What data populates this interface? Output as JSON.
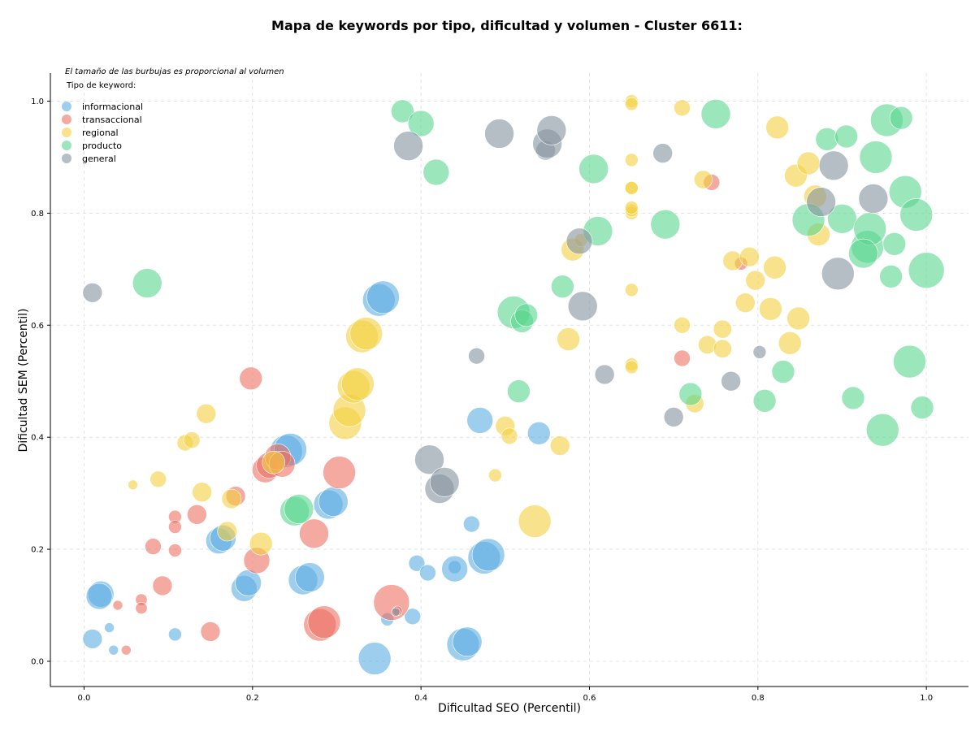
{
  "title": "Mapa de keywords por tipo, dificultad y volumen - Cluster 6611:",
  "note": "El tamaño de las burbujas es proporcional al volumen",
  "legend_title": "Tipo de keyword:",
  "chart_data": {
    "type": "scatter",
    "title": "Mapa de keywords por tipo, dificultad y volumen - Cluster 6611:",
    "xlabel": "Dificultad SEO (Percentil)",
    "ylabel": "Dificultad SEM (Percentil)",
    "xlim": [
      -0.04,
      1.05
    ],
    "ylim": [
      -0.045,
      1.05
    ],
    "xticks": [
      "0.0",
      "0.2",
      "0.4",
      "0.6",
      "0.8",
      "1.0"
    ],
    "yticks": [
      "0.0",
      "0.2",
      "0.4",
      "0.6",
      "0.8",
      "1.0"
    ],
    "grid": true,
    "legend_placement": "top-left",
    "size_encodes": "volume",
    "series": [
      {
        "name": "informacional",
        "color": "#5DADE2",
        "points": [
          [
            0.01,
            0.04,
            3
          ],
          [
            0.03,
            0.06,
            1.5
          ],
          [
            0.035,
            0.02,
            1.5
          ],
          [
            0.02,
            0.12,
            4
          ],
          [
            0.018,
            0.116,
            4
          ],
          [
            0.108,
            0.048,
            2
          ],
          [
            0.16,
            0.215,
            4
          ],
          [
            0.165,
            0.22,
            4
          ],
          [
            0.19,
            0.13,
            4
          ],
          [
            0.195,
            0.14,
            4
          ],
          [
            0.26,
            0.145,
            4.5
          ],
          [
            0.268,
            0.15,
            4.5
          ],
          [
            0.29,
            0.28,
            4.5
          ],
          [
            0.296,
            0.285,
            4.5
          ],
          [
            0.24,
            0.375,
            5
          ],
          [
            0.245,
            0.378,
            5
          ],
          [
            0.345,
            0.005,
            5
          ],
          [
            0.36,
            0.075,
            2
          ],
          [
            0.39,
            0.08,
            2.5
          ],
          [
            0.395,
            0.175,
            2.5
          ],
          [
            0.408,
            0.158,
            2.5
          ],
          [
            0.44,
            0.168,
            2
          ],
          [
            0.44,
            0.165,
            4
          ],
          [
            0.45,
            0.03,
            5
          ],
          [
            0.455,
            0.035,
            4.5
          ],
          [
            0.46,
            0.245,
            2.5
          ],
          [
            0.47,
            0.43,
            4
          ],
          [
            0.475,
            0.185,
            5
          ],
          [
            0.48,
            0.19,
            5
          ],
          [
            0.54,
            0.407,
            3.5
          ],
          [
            0.35,
            0.645,
            5
          ],
          [
            0.355,
            0.65,
            5
          ]
        ]
      },
      {
        "name": "transaccional",
        "color": "#EC7063",
        "points": [
          [
            0.04,
            0.1,
            1.5
          ],
          [
            0.05,
            0.02,
            1.5
          ],
          [
            0.068,
            0.11,
            1.8
          ],
          [
            0.068,
            0.095,
            1.8
          ],
          [
            0.082,
            0.205,
            2.5
          ],
          [
            0.093,
            0.135,
            3
          ],
          [
            0.108,
            0.258,
            2
          ],
          [
            0.108,
            0.24,
            2
          ],
          [
            0.108,
            0.198,
            2
          ],
          [
            0.134,
            0.262,
            3
          ],
          [
            0.15,
            0.053,
            3
          ],
          [
            0.18,
            0.295,
            3
          ],
          [
            0.198,
            0.505,
            3.5
          ],
          [
            0.205,
            0.18,
            4
          ],
          [
            0.215,
            0.342,
            4
          ],
          [
            0.22,
            0.35,
            4
          ],
          [
            0.23,
            0.365,
            4
          ],
          [
            0.235,
            0.352,
            4
          ],
          [
            0.273,
            0.228,
            4.5
          ],
          [
            0.28,
            0.065,
            5
          ],
          [
            0.285,
            0.07,
            5
          ],
          [
            0.303,
            0.337,
            5
          ],
          [
            0.365,
            0.105,
            5.5
          ],
          [
            0.372,
            0.09,
            1.5
          ],
          [
            0.71,
            0.541,
            2.5
          ],
          [
            0.745,
            0.855,
            2.5
          ],
          [
            0.78,
            0.71,
            2
          ]
        ]
      },
      {
        "name": "regional",
        "color": "#F4D03F",
        "points": [
          [
            0.058,
            0.315,
            1.5
          ],
          [
            0.088,
            0.325,
            2.5
          ],
          [
            0.12,
            0.39,
            2.5
          ],
          [
            0.128,
            0.395,
            2.5
          ],
          [
            0.145,
            0.442,
            3
          ],
          [
            0.14,
            0.302,
            3
          ],
          [
            0.17,
            0.232,
            3
          ],
          [
            0.175,
            0.29,
            3
          ],
          [
            0.21,
            0.21,
            3.5
          ],
          [
            0.225,
            0.355,
            3.5
          ],
          [
            0.31,
            0.425,
            5
          ],
          [
            0.315,
            0.448,
            5
          ],
          [
            0.32,
            0.49,
            5
          ],
          [
            0.325,
            0.495,
            5
          ],
          [
            0.33,
            0.58,
            5
          ],
          [
            0.335,
            0.585,
            5
          ],
          [
            0.488,
            0.332,
            2
          ],
          [
            0.5,
            0.42,
            3
          ],
          [
            0.505,
            0.402,
            2.5
          ],
          [
            0.535,
            0.25,
            5
          ],
          [
            0.565,
            0.385,
            3
          ],
          [
            0.575,
            0.575,
            3.5
          ],
          [
            0.58,
            0.735,
            3.5
          ],
          [
            0.59,
            0.752,
            2
          ],
          [
            0.65,
            0.663,
            2
          ],
          [
            0.65,
            0.53,
            2
          ],
          [
            0.65,
            0.525,
            2
          ],
          [
            0.65,
            0.8,
            2
          ],
          [
            0.65,
            0.805,
            2
          ],
          [
            0.65,
            0.81,
            2
          ],
          [
            0.65,
            0.845,
            2
          ],
          [
            0.65,
            0.845,
            2
          ],
          [
            0.65,
            0.895,
            2
          ],
          [
            0.65,
            1.0,
            2
          ],
          [
            0.65,
            0.995,
            2
          ],
          [
            0.71,
            0.6,
            2.5
          ],
          [
            0.71,
            0.988,
            2.5
          ],
          [
            0.735,
            0.86,
            2.8
          ],
          [
            0.74,
            0.565,
            2.8
          ],
          [
            0.725,
            0.46,
            2.8
          ],
          [
            0.758,
            0.593,
            2.8
          ],
          [
            0.758,
            0.558,
            2.8
          ],
          [
            0.77,
            0.715,
            3
          ],
          [
            0.785,
            0.64,
            3
          ],
          [
            0.79,
            0.722,
            3
          ],
          [
            0.797,
            0.68,
            3
          ],
          [
            0.815,
            0.629,
            3.5
          ],
          [
            0.82,
            0.703,
            3.5
          ],
          [
            0.823,
            0.953,
            3.5
          ],
          [
            0.838,
            0.568,
            3.5
          ],
          [
            0.848,
            0.612,
            3.5
          ],
          [
            0.845,
            0.867,
            3.5
          ],
          [
            0.86,
            0.889,
            3.5
          ],
          [
            0.868,
            0.83,
            3.5
          ],
          [
            0.872,
            0.762,
            3.5
          ]
        ]
      },
      {
        "name": "producto",
        "color": "#58D68D",
        "points": [
          [
            0.075,
            0.675,
            4.5
          ],
          [
            0.25,
            0.268,
            4.5
          ],
          [
            0.255,
            0.272,
            4.5
          ],
          [
            0.378,
            0.982,
            3.5
          ],
          [
            0.4,
            0.96,
            4
          ],
          [
            0.418,
            0.873,
            4
          ],
          [
            0.51,
            0.623,
            5
          ],
          [
            0.52,
            0.607,
            3.5
          ],
          [
            0.525,
            0.618,
            3.5
          ],
          [
            0.516,
            0.482,
            3.5
          ],
          [
            0.568,
            0.669,
            3.5
          ],
          [
            0.605,
            0.879,
            4.5
          ],
          [
            0.61,
            0.768,
            4.5
          ],
          [
            0.69,
            0.78,
            4.5
          ],
          [
            0.72,
            0.477,
            3.5
          ],
          [
            0.75,
            0.977,
            4.5
          ],
          [
            0.808,
            0.465,
            3.5
          ],
          [
            0.83,
            0.517,
            3.5
          ],
          [
            0.86,
            0.788,
            5
          ],
          [
            0.882,
            0.932,
            3.5
          ],
          [
            0.9,
            0.79,
            4.5
          ],
          [
            0.905,
            0.937,
            3.5
          ],
          [
            0.913,
            0.47,
            3.5
          ],
          [
            0.93,
            0.74,
            5
          ],
          [
            0.933,
            0.772,
            5
          ],
          [
            0.925,
            0.728,
            4.5
          ],
          [
            0.94,
            0.9,
            5
          ],
          [
            0.948,
            0.413,
            5
          ],
          [
            0.953,
            0.966,
            5
          ],
          [
            0.958,
            0.687,
            3.5
          ],
          [
            0.962,
            0.745,
            3.5
          ],
          [
            0.97,
            0.97,
            3.5
          ],
          [
            0.975,
            0.838,
            5
          ],
          [
            0.98,
            0.535,
            5
          ],
          [
            0.988,
            0.797,
            5
          ],
          [
            0.995,
            0.453,
            3.5
          ],
          [
            1.0,
            0.698,
            5.5
          ]
        ]
      },
      {
        "name": "general",
        "color": "#85929E",
        "points": [
          [
            0.01,
            0.658,
            3
          ],
          [
            0.37,
            0.088,
            1.3
          ],
          [
            0.385,
            0.92,
            4.5
          ],
          [
            0.41,
            0.36,
            4.5
          ],
          [
            0.422,
            0.308,
            4.5
          ],
          [
            0.428,
            0.32,
            4.5
          ],
          [
            0.466,
            0.545,
            2.5
          ],
          [
            0.493,
            0.942,
            4.5
          ],
          [
            0.548,
            0.912,
            3
          ],
          [
            0.55,
            0.924,
            4.5
          ],
          [
            0.555,
            0.948,
            4.5
          ],
          [
            0.588,
            0.75,
            4
          ],
          [
            0.592,
            0.634,
            4.5
          ],
          [
            0.618,
            0.512,
            3
          ],
          [
            0.687,
            0.907,
            3
          ],
          [
            0.7,
            0.436,
            3
          ],
          [
            0.768,
            0.5,
            3
          ],
          [
            0.802,
            0.552,
            2
          ],
          [
            0.875,
            0.82,
            4.5
          ],
          [
            0.89,
            0.885,
            4.5
          ],
          [
            0.895,
            0.692,
            5
          ],
          [
            0.937,
            0.826,
            4.5
          ]
        ]
      }
    ]
  }
}
